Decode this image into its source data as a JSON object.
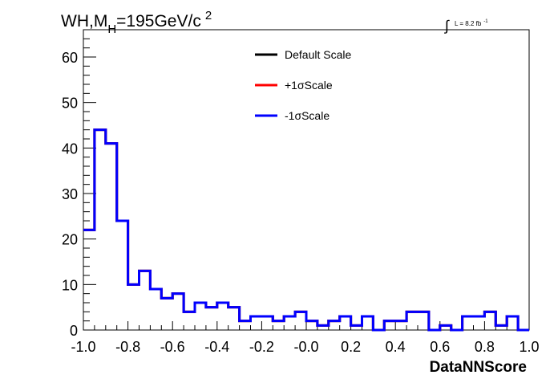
{
  "chart_data": {
    "type": "line",
    "title_parts": {
      "main": "WH,M",
      "sub": "H",
      "rest": "=195GeV/c",
      "sup": "2"
    },
    "lumi_label": {
      "integral": "∫",
      "text": "L = 8.2 fb",
      "sup": "-1"
    },
    "xlabel": "DataNNScore",
    "ylabel": "",
    "xlim": [
      -1.0,
      1.0
    ],
    "ylim": [
      0,
      66
    ],
    "x_ticks": [
      "-1.0",
      "-0.8",
      "-0.6",
      "-0.4",
      "-0.2",
      "-0.0",
      "0.2",
      "0.4",
      "0.6",
      "0.8",
      "1.0"
    ],
    "y_ticks": [
      "0",
      "10",
      "20",
      "30",
      "40",
      "50",
      "60"
    ],
    "bin_edges_start": -1.0,
    "bin_width": 0.05,
    "legend_position": "top-center",
    "series": [
      {
        "name": "Default Scale",
        "color": "#000000",
        "values": [
          22,
          44,
          41,
          24,
          10,
          13,
          9,
          7,
          8,
          4,
          6,
          5,
          6,
          5,
          2,
          3,
          3,
          2,
          3,
          4,
          2,
          1,
          2,
          3,
          1,
          3,
          0,
          2,
          2,
          4,
          4,
          0,
          1,
          0,
          3,
          3,
          4,
          1,
          3,
          0
        ]
      },
      {
        "name": "+1σScale",
        "color": "#ff0000",
        "values": [
          22,
          44,
          41,
          24,
          10,
          13,
          9,
          7,
          8,
          4,
          6,
          5,
          6,
          5,
          2,
          3,
          3,
          2,
          3,
          4,
          2,
          1,
          2,
          3,
          1,
          3,
          0,
          2,
          2,
          4,
          4,
          0,
          1,
          0,
          3,
          3,
          4,
          1,
          3,
          0
        ]
      },
      {
        "name": "-1σScale",
        "color": "#0000ff",
        "values": [
          22,
          44,
          41,
          24,
          10,
          13,
          9,
          7,
          8,
          4,
          6,
          5,
          6,
          5,
          2,
          3,
          3,
          2,
          3,
          4,
          2,
          1,
          2,
          3,
          1,
          3,
          0,
          2,
          2,
          4,
          4,
          0,
          1,
          0,
          3,
          3,
          4,
          1,
          3,
          0
        ]
      }
    ]
  }
}
